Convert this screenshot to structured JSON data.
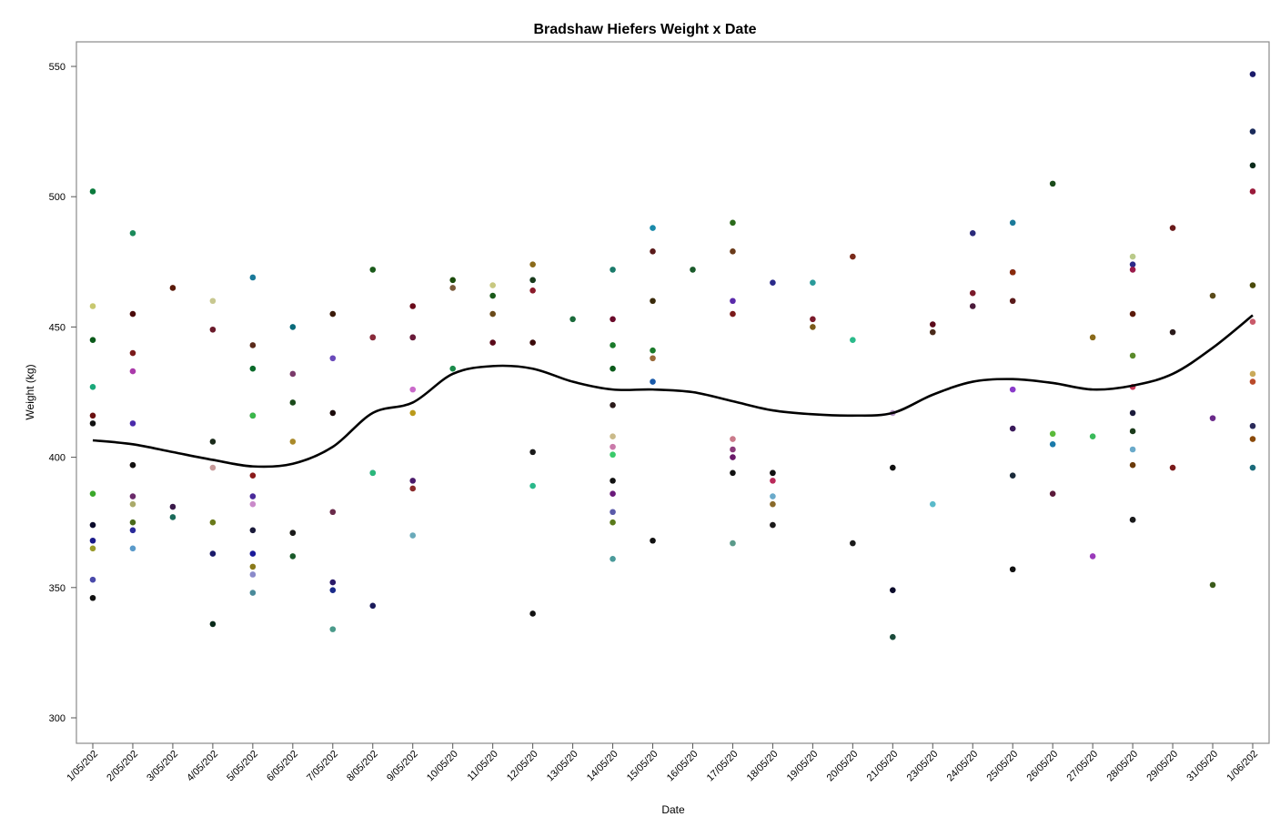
{
  "chart_data": {
    "type": "scatter",
    "title": "Bradshaw Hiefers Weight x Date",
    "xlabel": "Date",
    "ylabel": "Weight (kg)",
    "ylim": [
      290,
      560
    ],
    "y_ticks": [
      300,
      350,
      400,
      450,
      500,
      550
    ],
    "grid": false,
    "categories": [
      "1/05/202",
      "2/05/202",
      "3/05/202",
      "4/05/202",
      "5/05/202",
      "6/05/202",
      "7/05/202",
      "8/05/202",
      "9/05/202",
      "10/05/20",
      "11/05/20",
      "12/05/20",
      "13/05/20",
      "14/05/20",
      "15/05/20",
      "16/05/20",
      "17/05/20",
      "18/05/20",
      "19/05/20",
      "20/05/20",
      "21/05/20",
      "23/05/20",
      "24/05/20",
      "25/05/20",
      "26/05/20",
      "27/05/20",
      "28/05/20",
      "29/05/20",
      "31/05/20",
      "1/06/202"
    ],
    "points": [
      {
        "c": 0,
        "y": 502,
        "color": "#0a7a3c"
      },
      {
        "c": 0,
        "y": 458,
        "color": "#c8c870"
      },
      {
        "c": 0,
        "y": 445,
        "color": "#0a5a1a"
      },
      {
        "c": 0,
        "y": 427,
        "color": "#1aa87a"
      },
      {
        "c": 0,
        "y": 416,
        "color": "#6a1010"
      },
      {
        "c": 0,
        "y": 413,
        "color": "#111111"
      },
      {
        "c": 0,
        "y": 386,
        "color": "#3aa82a"
      },
      {
        "c": 0,
        "y": 374,
        "color": "#0a0a2a"
      },
      {
        "c": 0,
        "y": 368,
        "color": "#1a1a8a"
      },
      {
        "c": 0,
        "y": 365,
        "color": "#9a9a2a"
      },
      {
        "c": 0,
        "y": 353,
        "color": "#4a4aaa"
      },
      {
        "c": 0,
        "y": 346,
        "color": "#111111"
      },
      {
        "c": 1,
        "y": 486,
        "color": "#1a8a5a"
      },
      {
        "c": 1,
        "y": 455,
        "color": "#4a0a0a"
      },
      {
        "c": 1,
        "y": 440,
        "color": "#7a1a1a"
      },
      {
        "c": 1,
        "y": 433,
        "color": "#aa3aaa"
      },
      {
        "c": 1,
        "y": 413,
        "color": "#4a2aaa"
      },
      {
        "c": 1,
        "y": 397,
        "color": "#aa6a6a"
      },
      {
        "c": 1,
        "y": 385,
        "color": "#6a2a6a"
      },
      {
        "c": 1,
        "y": 382,
        "color": "#aaaa6a"
      },
      {
        "c": 1,
        "y": 375,
        "color": "#4a6a1a"
      },
      {
        "c": 1,
        "y": 372,
        "color": "#2a2a9a"
      },
      {
        "c": 1,
        "y": 365,
        "color": "#5a9aca"
      },
      {
        "c": 1,
        "y": 397,
        "color": "#111111"
      },
      {
        "c": 2,
        "y": 465,
        "color": "#5a1a0a"
      },
      {
        "c": 2,
        "y": 381,
        "color": "#3a1a4a"
      },
      {
        "c": 2,
        "y": 377,
        "color": "#1a6a5a"
      },
      {
        "c": 3,
        "y": 460,
        "color": "#c8c890"
      },
      {
        "c": 3,
        "y": 449,
        "color": "#6a1a2a"
      },
      {
        "c": 3,
        "y": 406,
        "color": "#1a2a1a"
      },
      {
        "c": 3,
        "y": 396,
        "color": "#c89a9a"
      },
      {
        "c": 3,
        "y": 375,
        "color": "#6a7a1a"
      },
      {
        "c": 3,
        "y": 363,
        "color": "#1a1a6a"
      },
      {
        "c": 3,
        "y": 336,
        "color": "#0a2a1a"
      },
      {
        "c": 4,
        "y": 469,
        "color": "#1a7a9a"
      },
      {
        "c": 4,
        "y": 443,
        "color": "#5a2a1a"
      },
      {
        "c": 4,
        "y": 434,
        "color": "#0a6a2a"
      },
      {
        "c": 4,
        "y": 416,
        "color": "#111111"
      },
      {
        "c": 4,
        "y": 416,
        "color": "#3ab84a"
      },
      {
        "c": 4,
        "y": 393,
        "color": "#8a1a1a"
      },
      {
        "c": 4,
        "y": 385,
        "color": "#4a2a9a"
      },
      {
        "c": 4,
        "y": 382,
        "color": "#ca8aca"
      },
      {
        "c": 4,
        "y": 372,
        "color": "#1a1a3a"
      },
      {
        "c": 4,
        "y": 363,
        "color": "#1a1a9a"
      },
      {
        "c": 4,
        "y": 358,
        "color": "#8a7a1a"
      },
      {
        "c": 4,
        "y": 355,
        "color": "#8a8aca"
      },
      {
        "c": 4,
        "y": 348,
        "color": "#4a8a9a"
      },
      {
        "c": 5,
        "y": 450,
        "color": "#0a6a7a"
      },
      {
        "c": 5,
        "y": 432,
        "color": "#7a3a6a"
      },
      {
        "c": 5,
        "y": 421,
        "color": "#1a4a1a"
      },
      {
        "c": 5,
        "y": 406,
        "color": "#aa8a2a"
      },
      {
        "c": 5,
        "y": 371,
        "color": "#4a5a1a"
      },
      {
        "c": 5,
        "y": 371,
        "color": "#1a1a1a"
      },
      {
        "c": 5,
        "y": 362,
        "color": "#1a5a2a"
      },
      {
        "c": 6,
        "y": 455,
        "color": "#3a1a0a"
      },
      {
        "c": 6,
        "y": 438,
        "color": "#6a4aba"
      },
      {
        "c": 6,
        "y": 417,
        "color": "#1a0a0a"
      },
      {
        "c": 6,
        "y": 379,
        "color": "#6a2a4a"
      },
      {
        "c": 6,
        "y": 352,
        "color": "#2a1a6a"
      },
      {
        "c": 6,
        "y": 349,
        "color": "#1a2a8a"
      },
      {
        "c": 6,
        "y": 334,
        "color": "#4a9a8a"
      },
      {
        "c": 7,
        "y": 472,
        "color": "#1a5a1a"
      },
      {
        "c": 7,
        "y": 446,
        "color": "#2a0a1a"
      },
      {
        "c": 7,
        "y": 446,
        "color": "#8a2a3a"
      },
      {
        "c": 7,
        "y": 394,
        "color": "#2a5aaa"
      },
      {
        "c": 7,
        "y": 394,
        "color": "#2ab87a"
      },
      {
        "c": 7,
        "y": 343,
        "color": "#1a1a5a"
      },
      {
        "c": 8,
        "y": 458,
        "color": "#6a0a1a"
      },
      {
        "c": 8,
        "y": 446,
        "color": "#2a0a0a"
      },
      {
        "c": 8,
        "y": 446,
        "color": "#6a1a3a"
      },
      {
        "c": 8,
        "y": 426,
        "color": "#ca6aca"
      },
      {
        "c": 8,
        "y": 417,
        "color": "#ba9a1a"
      },
      {
        "c": 8,
        "y": 391,
        "color": "#4a1a6a"
      },
      {
        "c": 8,
        "y": 388,
        "color": "#8a2a2a"
      },
      {
        "c": 8,
        "y": 370,
        "color": "#6aaaba"
      },
      {
        "c": 9,
        "y": 468,
        "color": "#1a4a0a"
      },
      {
        "c": 9,
        "y": 465,
        "color": "#7a5a3a"
      },
      {
        "c": 9,
        "y": 434,
        "color": "#1a8a4a"
      },
      {
        "c": 10,
        "y": 466,
        "color": "#c8c880"
      },
      {
        "c": 10,
        "y": 462,
        "color": "#1a5a1a"
      },
      {
        "c": 10,
        "y": 455,
        "color": "#6a4a1a"
      },
      {
        "c": 10,
        "y": 444,
        "color": "#5a0a1a"
      },
      {
        "c": 11,
        "y": 474,
        "color": "#8a6a1a"
      },
      {
        "c": 11,
        "y": 468,
        "color": "#3a9aba"
      },
      {
        "c": 11,
        "y": 468,
        "color": "#1a3a1a"
      },
      {
        "c": 11,
        "y": 464,
        "color": "#8a1a2a"
      },
      {
        "c": 11,
        "y": 444,
        "color": "#3a0a0a"
      },
      {
        "c": 11,
        "y": 402,
        "color": "#1a1a1a"
      },
      {
        "c": 11,
        "y": 389,
        "color": "#2ab88a"
      },
      {
        "c": 11,
        "y": 340,
        "color": "#111111"
      },
      {
        "c": 12,
        "y": 453,
        "color": "#1a6a3a"
      },
      {
        "c": 13,
        "y": 472,
        "color": "#1a7a6a"
      },
      {
        "c": 13,
        "y": 453,
        "color": "#6a0a2a"
      },
      {
        "c": 13,
        "y": 443,
        "color": "#1a7a2a"
      },
      {
        "c": 13,
        "y": 434,
        "color": "#0a5a1a"
      },
      {
        "c": 13,
        "y": 420,
        "color": "#2a1a1a"
      },
      {
        "c": 13,
        "y": 408,
        "color": "#caba8a"
      },
      {
        "c": 13,
        "y": 404,
        "color": "#ca7aaa"
      },
      {
        "c": 13,
        "y": 401,
        "color": "#3aca6a"
      },
      {
        "c": 13,
        "y": 391,
        "color": "#111111"
      },
      {
        "c": 13,
        "y": 386,
        "color": "#6a1a7a"
      },
      {
        "c": 13,
        "y": 379,
        "color": "#5a5aaa"
      },
      {
        "c": 13,
        "y": 375,
        "color": "#5a7a1a"
      },
      {
        "c": 13,
        "y": 361,
        "color": "#4a9a9a"
      },
      {
        "c": 14,
        "y": 488,
        "color": "#1a8aaa"
      },
      {
        "c": 14,
        "y": 479,
        "color": "#5a1a1a"
      },
      {
        "c": 14,
        "y": 460,
        "color": "#3a2a0a"
      },
      {
        "c": 14,
        "y": 441,
        "color": "#1a7a2a"
      },
      {
        "c": 14,
        "y": 438,
        "color": "#9a6a3a"
      },
      {
        "c": 14,
        "y": 429,
        "color": "#1a5aaa"
      },
      {
        "c": 14,
        "y": 368,
        "color": "#111111"
      },
      {
        "c": 15,
        "y": 472,
        "color": "#1a5a2a"
      },
      {
        "c": 16,
        "y": 490,
        "color": "#2a6a1a"
      },
      {
        "c": 16,
        "y": 479,
        "color": "#6a3a1a"
      },
      {
        "c": 16,
        "y": 460,
        "color": "#5a2aaa"
      },
      {
        "c": 16,
        "y": 455,
        "color": "#7a1a1a"
      },
      {
        "c": 16,
        "y": 407,
        "color": "#ca7a8a"
      },
      {
        "c": 16,
        "y": 403,
        "color": "#8a3a7a"
      },
      {
        "c": 16,
        "y": 400,
        "color": "#6a1a6a"
      },
      {
        "c": 16,
        "y": 394,
        "color": "#111111"
      },
      {
        "c": 16,
        "y": 367,
        "color": "#5a9a8a"
      },
      {
        "c": 17,
        "y": 467,
        "color": "#2a2a8a"
      },
      {
        "c": 17,
        "y": 394,
        "color": "#4a1a2a"
      },
      {
        "c": 17,
        "y": 394,
        "color": "#111111"
      },
      {
        "c": 17,
        "y": 391,
        "color": "#ba2a5a"
      },
      {
        "c": 17,
        "y": 385,
        "color": "#6aaaca"
      },
      {
        "c": 17,
        "y": 382,
        "color": "#8a6a2a"
      },
      {
        "c": 17,
        "y": 374,
        "color": "#ca8aaa"
      },
      {
        "c": 17,
        "y": 374,
        "color": "#1a1a1a"
      },
      {
        "c": 18,
        "y": 467,
        "color": "#2a9a9a"
      },
      {
        "c": 18,
        "y": 453,
        "color": "#7a1a2a"
      },
      {
        "c": 18,
        "y": 450,
        "color": "#7a5a1a"
      },
      {
        "c": 19,
        "y": 477,
        "color": "#7a2a1a"
      },
      {
        "c": 19,
        "y": 445,
        "color": "#2aba8a"
      },
      {
        "c": 19,
        "y": 367,
        "color": "#1a1a1a"
      },
      {
        "c": 20,
        "y": 417,
        "color": "#ba9aca"
      },
      {
        "c": 20,
        "y": 396,
        "color": "#111111"
      },
      {
        "c": 20,
        "y": 349,
        "color": "#0a0a2a"
      },
      {
        "c": 20,
        "y": 331,
        "color": "#1a4a3a"
      },
      {
        "c": 21,
        "y": 451,
        "color": "#5a0a1a"
      },
      {
        "c": 21,
        "y": 448,
        "color": "#4a2a1a"
      },
      {
        "c": 21,
        "y": 382,
        "color": "#5abaca"
      },
      {
        "c": 22,
        "y": 486,
        "color": "#2a2a7a"
      },
      {
        "c": 22,
        "y": 463,
        "color": "#7a1a2a"
      },
      {
        "c": 22,
        "y": 458,
        "color": "#4a1a3a"
      },
      {
        "c": 23,
        "y": 490,
        "color": "#1a7a9a"
      },
      {
        "c": 23,
        "y": 471,
        "color": "#2a1a9a"
      },
      {
        "c": 23,
        "y": 471,
        "color": "#8a2a0a"
      },
      {
        "c": 23,
        "y": 460,
        "color": "#5a1a1a"
      },
      {
        "c": 23,
        "y": 426,
        "color": "#8a3aca"
      },
      {
        "c": 23,
        "y": 411,
        "color": "#3a1a5a"
      },
      {
        "c": 23,
        "y": 393,
        "color": "#1a2a3a"
      },
      {
        "c": 23,
        "y": 357,
        "color": "#111111"
      },
      {
        "c": 24,
        "y": 505,
        "color": "#1a4a1a"
      },
      {
        "c": 24,
        "y": 409,
        "color": "#5aba3a"
      },
      {
        "c": 24,
        "y": 405,
        "color": "#1a7aaa"
      },
      {
        "c": 24,
        "y": 386,
        "color": "#5a1a3a"
      },
      {
        "c": 25,
        "y": 446,
        "color": "#8a6a1a"
      },
      {
        "c": 25,
        "y": 408,
        "color": "#3aba5a"
      },
      {
        "c": 25,
        "y": 362,
        "color": "#9a3aba"
      },
      {
        "c": 26,
        "y": 477,
        "color": "#baca8a"
      },
      {
        "c": 26,
        "y": 474,
        "color": "#2a2a8a"
      },
      {
        "c": 26,
        "y": 472,
        "color": "#9a1a4a"
      },
      {
        "c": 26,
        "y": 455,
        "color": "#5a1a0a"
      },
      {
        "c": 26,
        "y": 439,
        "color": "#5a8a2a"
      },
      {
        "c": 26,
        "y": 427,
        "color": "#ca3a5a"
      },
      {
        "c": 26,
        "y": 417,
        "color": "#1a1a3a"
      },
      {
        "c": 26,
        "y": 410,
        "color": "#1a3a1a"
      },
      {
        "c": 26,
        "y": 403,
        "color": "#6aaaca"
      },
      {
        "c": 26,
        "y": 397,
        "color": "#6a3a0a"
      },
      {
        "c": 26,
        "y": 376,
        "color": "#1a1a4a"
      },
      {
        "c": 26,
        "y": 376,
        "color": "#1a1a1a"
      },
      {
        "c": 27,
        "y": 488,
        "color": "#6a1a1a"
      },
      {
        "c": 27,
        "y": 448,
        "color": "#2a1a1a"
      },
      {
        "c": 27,
        "y": 396,
        "color": "#7a1a1a"
      },
      {
        "c": 28,
        "y": 462,
        "color": "#5a4a1a"
      },
      {
        "c": 28,
        "y": 415,
        "color": "#6a2a8a"
      },
      {
        "c": 28,
        "y": 351,
        "color": "#3a5a1a"
      },
      {
        "c": 29,
        "y": 547,
        "color": "#1a1a6a"
      },
      {
        "c": 29,
        "y": 525,
        "color": "#1a2a5a"
      },
      {
        "c": 29,
        "y": 512,
        "color": "#0a2a1a"
      },
      {
        "c": 29,
        "y": 502,
        "color": "#9a1a3a"
      },
      {
        "c": 29,
        "y": 466,
        "color": "#4a4a0a"
      },
      {
        "c": 29,
        "y": 452,
        "color": "#ca5a6a"
      },
      {
        "c": 29,
        "y": 432,
        "color": "#caaa5a"
      },
      {
        "c": 29,
        "y": 429,
        "color": "#ba4a2a"
      },
      {
        "c": 29,
        "y": 412,
        "color": "#2a2a5a"
      },
      {
        "c": 29,
        "y": 407,
        "color": "#8a4a0a"
      },
      {
        "c": 29,
        "y": 396,
        "color": "#1a6a7a"
      }
    ],
    "smoother": [
      [
        0,
        406.5
      ],
      [
        1,
        405
      ],
      [
        2,
        402
      ],
      [
        3,
        399
      ],
      [
        4,
        396.5
      ],
      [
        5,
        397.5
      ],
      [
        6,
        404
      ],
      [
        7,
        417
      ],
      [
        8,
        421
      ],
      [
        9,
        432
      ],
      [
        10,
        435
      ],
      [
        11,
        434
      ],
      [
        12,
        429
      ],
      [
        13,
        426
      ],
      [
        14,
        426
      ],
      [
        15,
        425
      ],
      [
        16,
        421.5
      ],
      [
        17,
        418
      ],
      [
        18,
        416.5
      ],
      [
        19,
        416
      ],
      [
        20,
        417
      ],
      [
        21,
        424
      ],
      [
        22,
        429
      ],
      [
        23,
        430
      ],
      [
        24,
        428.5
      ],
      [
        25,
        426
      ],
      [
        26,
        427.5
      ],
      [
        27,
        432
      ],
      [
        28,
        442
      ],
      [
        29,
        454.5
      ]
    ]
  }
}
